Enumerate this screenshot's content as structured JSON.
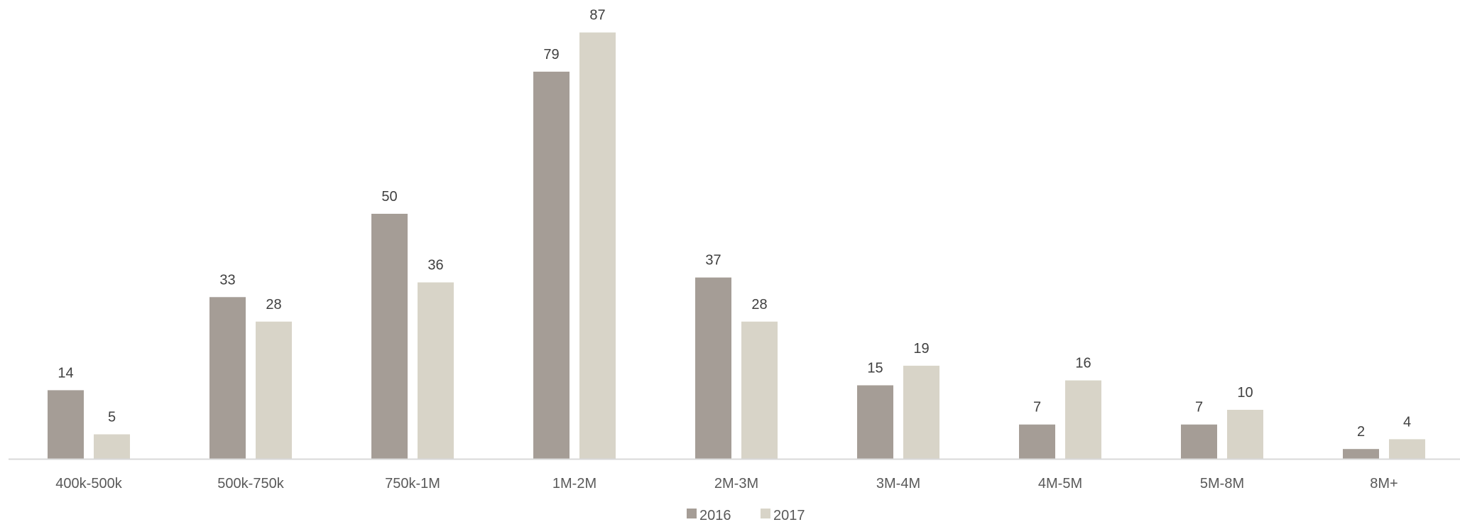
{
  "chart_data": {
    "type": "bar",
    "categories": [
      "400k-500k",
      "500k-750k",
      "750k-1M",
      "1M-2M",
      "2M-3M",
      "3M-4M",
      "4M-5M",
      "5M-8M",
      "8M+"
    ],
    "series": [
      {
        "name": "2016",
        "color": "#a59d96",
        "values": [
          14,
          33,
          50,
          79,
          37,
          15,
          7,
          7,
          2
        ]
      },
      {
        "name": "2017",
        "color": "#d8d4c8",
        "values": [
          5,
          28,
          36,
          87,
          28,
          19,
          16,
          10,
          4
        ]
      }
    ],
    "ylim": [
      0,
      87
    ],
    "grid": false,
    "legend": "bottom-center",
    "data_labels": true,
    "axis_color": "#d9d9d9"
  }
}
